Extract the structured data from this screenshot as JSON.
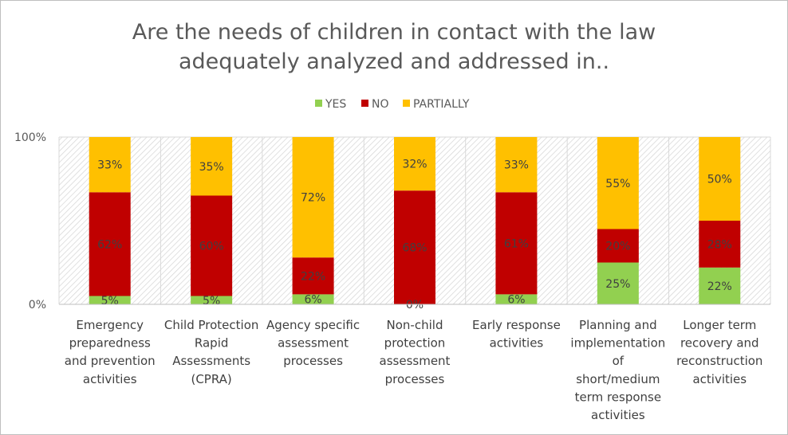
{
  "chart_data": {
    "type": "bar",
    "stacked": true,
    "percent": true,
    "title": [
      "Are the needs of children in contact with the law",
      "adequately analyzed and addressed in.."
    ],
    "xlabel": "",
    "ylabel": "",
    "ylim": [
      0,
      100
    ],
    "yticks": [
      {
        "value": 0,
        "label": "0%"
      },
      {
        "value": 100,
        "label": "100%"
      }
    ],
    "legend_position": "top-center",
    "categories": [
      [
        "Emergency",
        "preparedness",
        "and prevention",
        "activities"
      ],
      [
        "Child Protection",
        "Rapid",
        "Assessments",
        "(CPRA)"
      ],
      [
        "Agency specific",
        "assessment",
        "processes"
      ],
      [
        "Non-child",
        "protection",
        "assessment",
        "processes"
      ],
      [
        "Early response",
        "activities"
      ],
      [
        "Planning and",
        "implementation",
        "of",
        "short/medium",
        "term response",
        "activities"
      ],
      [
        "Longer term",
        "recovery and",
        "reconstruction",
        "activities"
      ]
    ],
    "series": [
      {
        "name": "YES",
        "color": "#92d050",
        "values": [
          5,
          5,
          6,
          0,
          6,
          25,
          22
        ]
      },
      {
        "name": "NO",
        "color": "#c00000",
        "values": [
          62,
          60,
          22,
          68,
          61,
          20,
          28
        ]
      },
      {
        "name": "PARTIALLY",
        "color": "#ffc000",
        "values": [
          33,
          35,
          72,
          32,
          33,
          55,
          50
        ]
      }
    ]
  }
}
